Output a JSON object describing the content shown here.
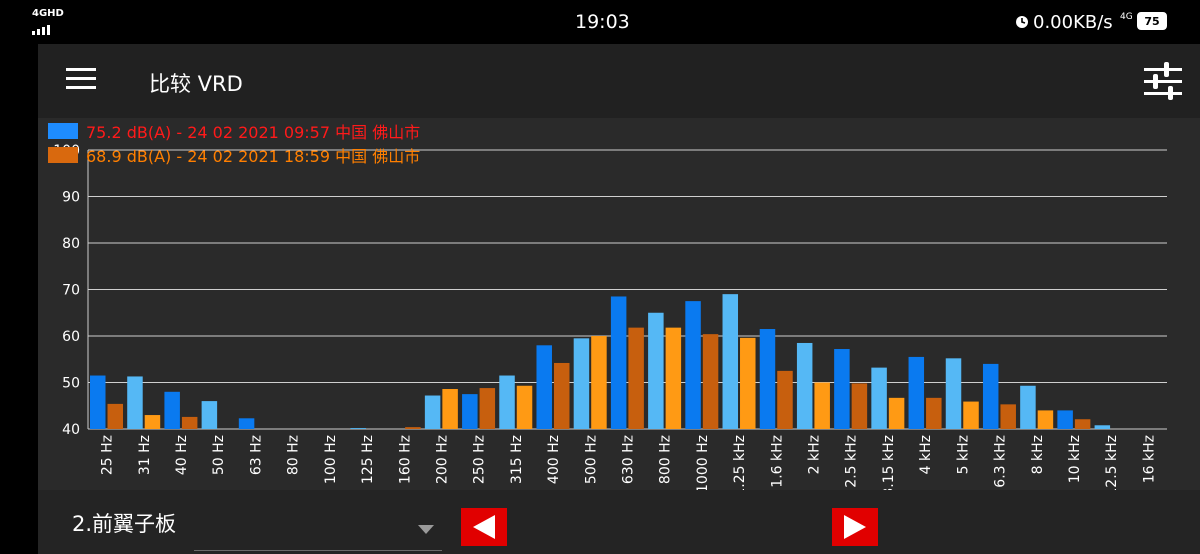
{
  "status_bar": {
    "network": "4GHD",
    "time": "19:03",
    "speed": "0.00KB/s",
    "network_right": "4G",
    "battery": "75"
  },
  "header": {
    "title": "比较 VRD",
    "menu_icon": "hamburger-menu-icon",
    "settings_icon": "sliders-icon"
  },
  "legend": [
    {
      "text": "75.2 dB(A)  -  24 02 2021 09:57 中国 佛山市",
      "color": "#ff1a1a",
      "swatch": "#1e8cff"
    },
    {
      "text": "68.9 dB(A)  -  24 02 2021 18:59 中国 佛山市",
      "color": "#ff7f00",
      "swatch": "#d9690e"
    }
  ],
  "bottom": {
    "selector_value": "2.前翼子板",
    "dropdown_icon": "caret-down-icon",
    "prev_icon": "arrow-left-icon",
    "next_icon": "arrow-right-icon"
  },
  "colors": {
    "series1_a": "#0a7af0",
    "series1_b": "#55b8f5",
    "series2_a": "#c75f0e",
    "series2_b": "#ff9a14",
    "grid": "#cfcfcf",
    "nav": "#e10000"
  },
  "chart_data": {
    "type": "bar",
    "categories": [
      "25 Hz",
      "31 Hz",
      "40 Hz",
      "50 Hz",
      "63 Hz",
      "80 Hz",
      "100 Hz",
      "125 Hz",
      "160 Hz",
      "200 Hz",
      "250 Hz",
      "315 Hz",
      "400 Hz",
      "500 Hz",
      "630 Hz",
      "800 Hz",
      "1000 Hz",
      "1.25 kHz",
      "1.6 kHz",
      "2 kHz",
      "2.5 kHz",
      "3.15 kHz",
      "4 kHz",
      "5 kHz",
      "6.3 kHz",
      "8 kHz",
      "10 kHz",
      "12.5 kHz",
      "16 kHz"
    ],
    "series": [
      {
        "name": "75.2 dB(A)  -  24 02 2021 09:57 中国 佛山市",
        "values": [
          51.5,
          51.3,
          48,
          46,
          42.3,
          40,
          40,
          40.2,
          40,
          47.2,
          47.5,
          51.5,
          58,
          59.5,
          68.5,
          65,
          67.5,
          69,
          61.5,
          58.5,
          57.2,
          53.2,
          55.5,
          55.2,
          54,
          49.3,
          44,
          40.8,
          40
        ]
      },
      {
        "name": "68.9 dB(A)  -  24 02 2021 18:59 中国 佛山市",
        "values": [
          45.4,
          43,
          42.6,
          40,
          40,
          40,
          40,
          40,
          40.4,
          48.6,
          48.8,
          49.3,
          54.2,
          60,
          61.8,
          61.8,
          60.4,
          59.6,
          52.5,
          50,
          49.8,
          46.7,
          46.7,
          45.9,
          45.3,
          44,
          42.1,
          40,
          40
        ]
      }
    ],
    "ylim": [
      40,
      100
    ],
    "yticks": [
      40,
      50,
      60,
      70,
      80,
      90,
      100
    ],
    "grid": true,
    "legend": "top-left"
  }
}
